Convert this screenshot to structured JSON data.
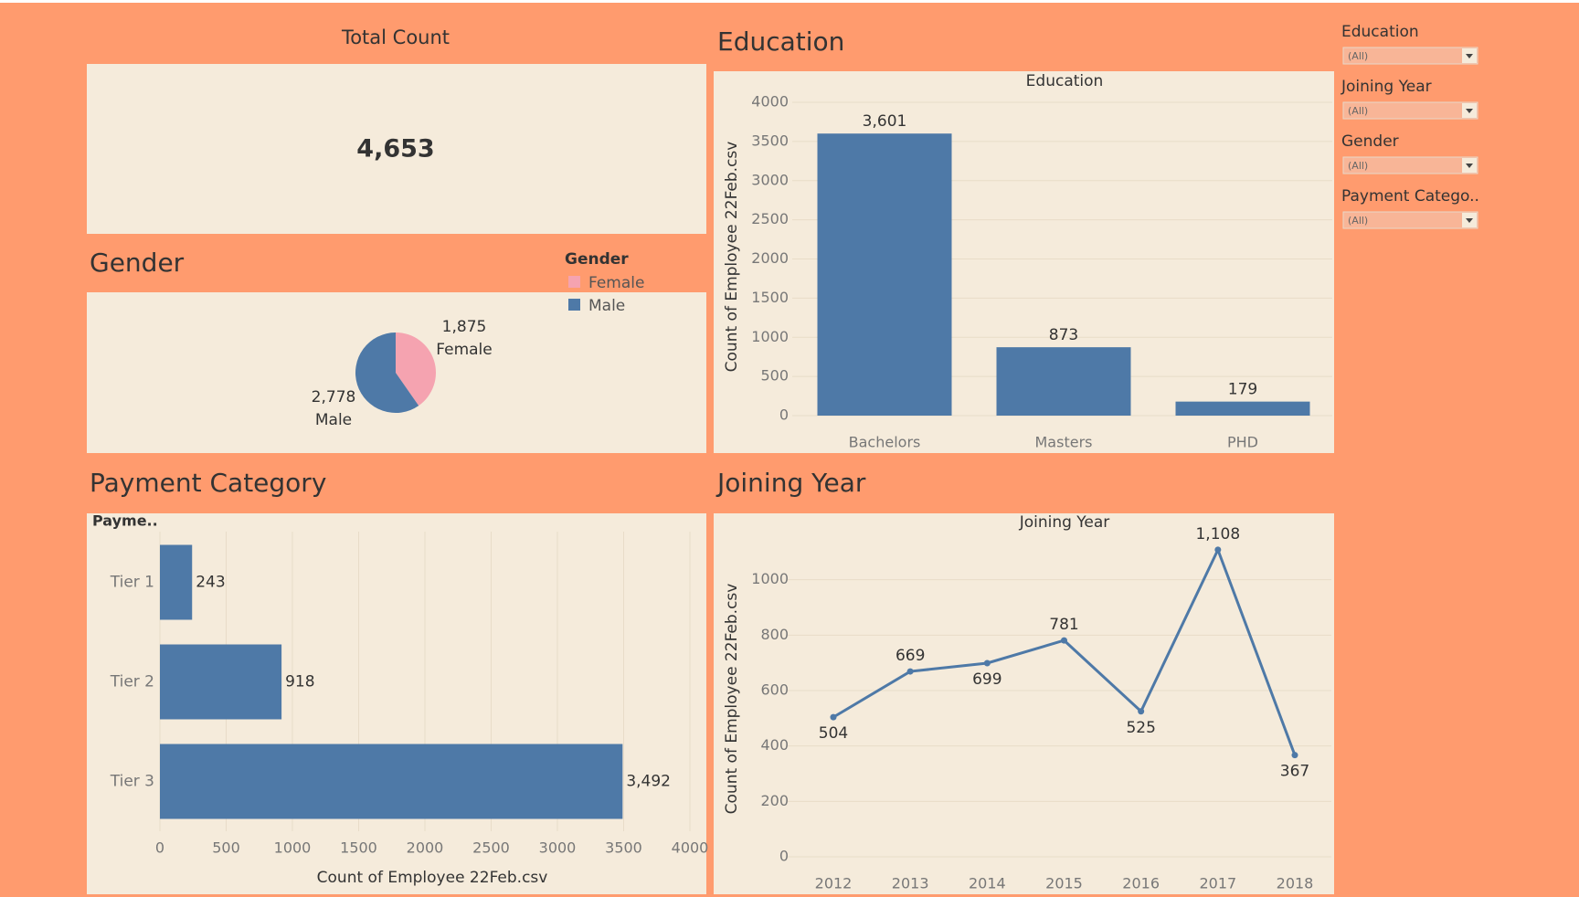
{
  "total": {
    "title": "Total Count",
    "value": "4,653"
  },
  "filters": [
    {
      "label": "Education",
      "value": "(All)"
    },
    {
      "label": "Joining Year",
      "value": "(All)"
    },
    {
      "label": "Gender",
      "value": "(All)"
    },
    {
      "label": "Payment Catego..",
      "value": "(All)"
    }
  ],
  "chart_data": [
    {
      "type": "pie",
      "section_title": "Gender",
      "legend_title": "Gender",
      "categories": [
        "Female",
        "Male"
      ],
      "values": [
        1875,
        2778
      ],
      "value_labels": [
        "1,875",
        "2,778"
      ],
      "colors": [
        "#f5a3b0",
        "#4e79a7"
      ]
    },
    {
      "type": "bar",
      "section_title": "Education",
      "title": "Education",
      "y_label": "Count of Employee 22Feb.csv",
      "categories": [
        "Bachelors",
        "Masters",
        "PHD"
      ],
      "values": [
        3601,
        873,
        179
      ],
      "value_labels": [
        "3,601",
        "873",
        "179"
      ],
      "color": "#4e79a7",
      "ylim": [
        0,
        4000
      ],
      "yticks": [
        0,
        500,
        1000,
        1500,
        2000,
        2500,
        3000,
        3500,
        4000
      ],
      "grid": true
    },
    {
      "type": "hbar",
      "section_title": "Payment Category",
      "header": "Payme..",
      "x_label": "Count of Employee 22Feb.csv",
      "categories": [
        "Tier 1",
        "Tier 2",
        "Tier 3"
      ],
      "values": [
        243,
        918,
        3492
      ],
      "value_labels": [
        "243",
        "918",
        "3,492"
      ],
      "color": "#4e79a7",
      "xlim": [
        0,
        4000
      ],
      "xticks": [
        0,
        500,
        1000,
        1500,
        2000,
        2500,
        3000,
        3500,
        4000
      ],
      "grid": true
    },
    {
      "type": "line",
      "section_title": "Joining Year",
      "title": "Joining Year",
      "y_label": "Count of Employee 22Feb.csv",
      "x": [
        2012,
        2013,
        2014,
        2015,
        2016,
        2017,
        2018
      ],
      "values": [
        504,
        669,
        699,
        781,
        525,
        1108,
        367
      ],
      "value_labels": [
        "504",
        "669",
        "699",
        "781",
        "525",
        "1,108",
        "367"
      ],
      "color": "#4e79a7",
      "xlim": [
        2012,
        2018
      ],
      "ylim": [
        0,
        1200
      ],
      "yticks": [
        0,
        200,
        400,
        600,
        800,
        1000
      ],
      "grid": true
    }
  ]
}
